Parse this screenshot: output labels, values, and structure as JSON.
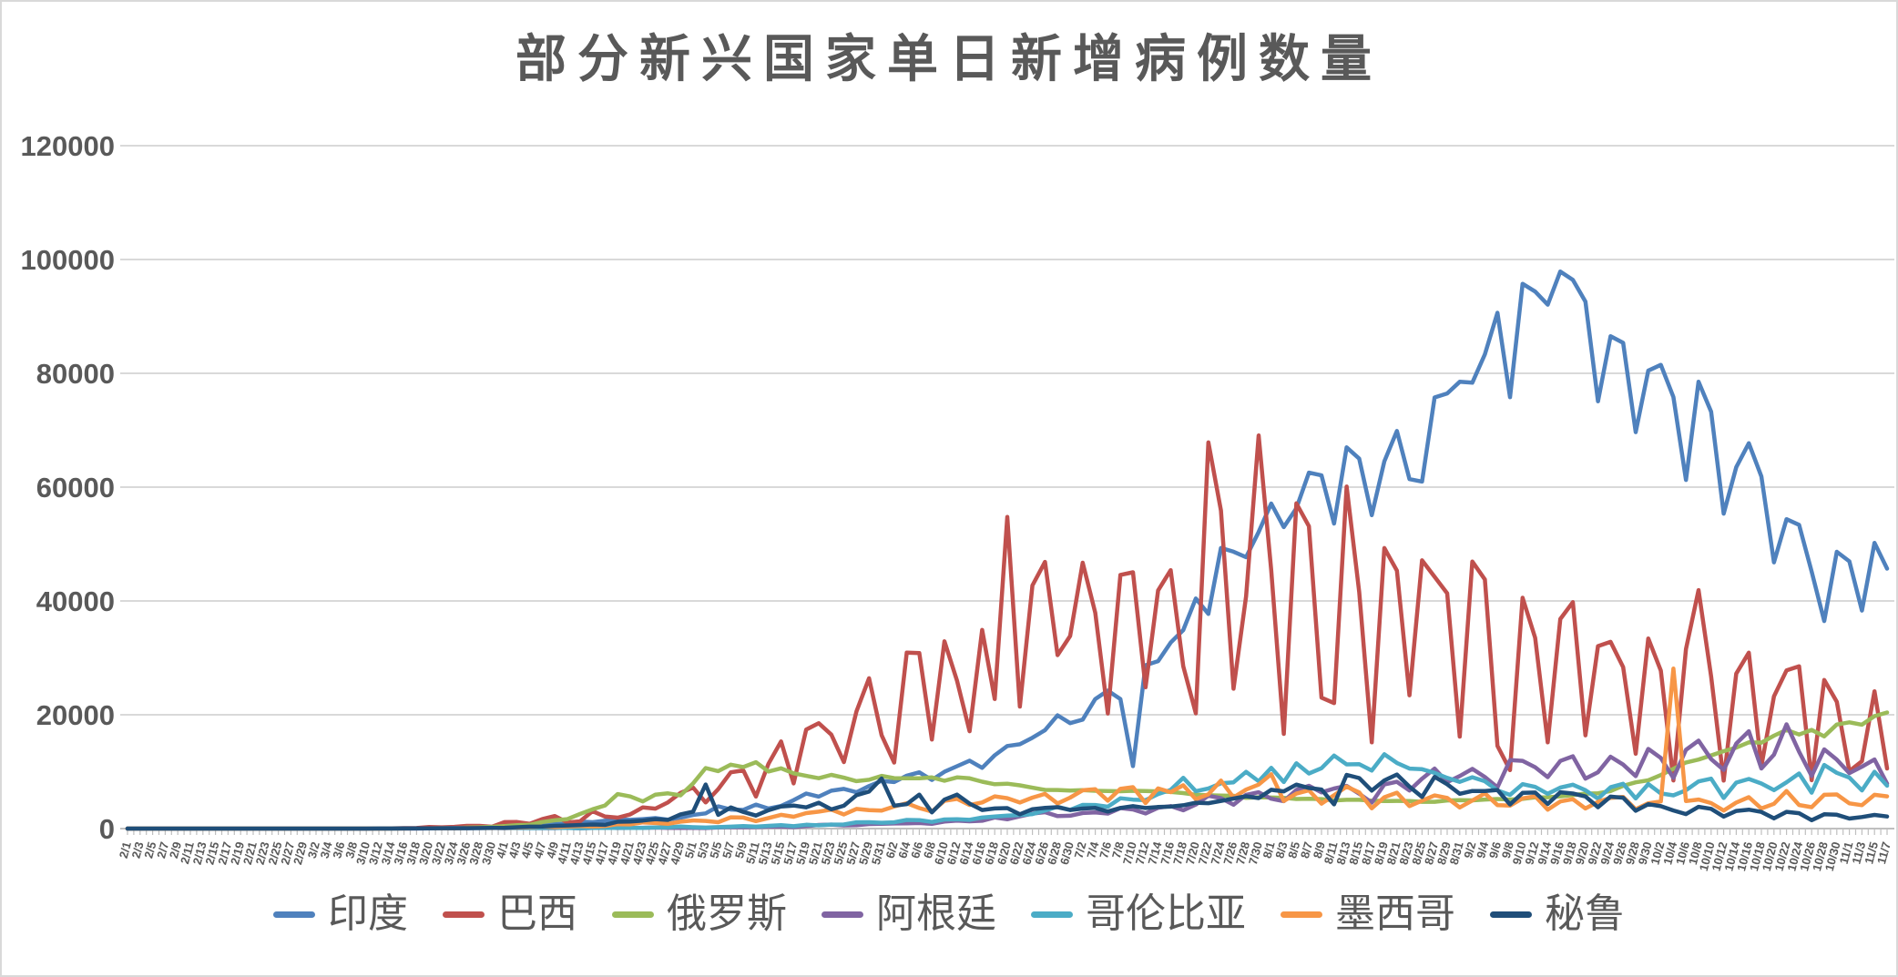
{
  "title": "部分新兴国家单日新增病例数量",
  "colors": {
    "background": "#ffffff",
    "gridline": "#d9d9d9",
    "axis_line": "#bfbfbf",
    "text": "#595959"
  },
  "chart_data": {
    "type": "line",
    "title": "部分新兴国家单日新增病例数量",
    "xlabel": "",
    "ylabel": "",
    "ylim": [
      0,
      120000
    ],
    "y_ticks": [
      0,
      20000,
      40000,
      60000,
      80000,
      100000,
      120000
    ],
    "grid": "horizontal",
    "legend_position": "bottom",
    "x_tick_labels": [
      "2/1",
      "2/3",
      "2/5",
      "2/7",
      "2/9",
      "2/11",
      "2/13",
      "2/15",
      "2/17",
      "2/19",
      "2/21",
      "2/23",
      "2/25",
      "2/27",
      "2/29",
      "3/2",
      "3/4",
      "3/6",
      "3/8",
      "3/10",
      "3/12",
      "3/14",
      "3/16",
      "3/18",
      "3/20",
      "3/22",
      "3/24",
      "3/26",
      "3/28",
      "3/30",
      "4/1",
      "4/3",
      "4/5",
      "4/7",
      "4/9",
      "4/11",
      "4/13",
      "4/15",
      "4/17",
      "4/19",
      "4/21",
      "4/23",
      "4/25",
      "4/27",
      "4/29",
      "5/1",
      "5/3",
      "5/5",
      "5/7",
      "5/9",
      "5/11",
      "5/13",
      "5/15",
      "5/17",
      "5/19",
      "5/21",
      "5/23",
      "5/25",
      "5/27",
      "5/29",
      "5/31",
      "6/2",
      "6/4",
      "6/6",
      "6/8",
      "6/10",
      "6/12",
      "6/14",
      "6/16",
      "6/18",
      "6/20",
      "6/22",
      "6/24",
      "6/26",
      "6/28",
      "6/30",
      "7/2",
      "7/4",
      "7/6",
      "7/8",
      "7/10",
      "7/12",
      "7/14",
      "7/16",
      "7/18",
      "7/20",
      "7/22",
      "7/24",
      "7/26",
      "7/28",
      "7/30",
      "8/1",
      "8/3",
      "8/5",
      "8/7",
      "8/9",
      "8/11",
      "8/13",
      "8/15",
      "8/17",
      "8/19",
      "8/21",
      "8/23",
      "8/25",
      "8/27",
      "8/29",
      "8/31",
      "9/2",
      "9/4",
      "9/6",
      "9/8",
      "9/10",
      "9/12",
      "9/14",
      "9/16",
      "9/18",
      "9/20",
      "9/22",
      "9/24",
      "9/26",
      "9/28",
      "9/30",
      "10/2",
      "10/4",
      "10/6",
      "10/8",
      "10/10",
      "10/12",
      "10/14",
      "10/16",
      "10/18",
      "10/20",
      "10/22",
      "10/24",
      "10/26",
      "10/28",
      "10/30",
      "11/1",
      "11/3",
      "11/5",
      "11/7"
    ],
    "series": [
      {
        "name": "印度",
        "color": "#4F81BD",
        "values": [
          0,
          0,
          0,
          0,
          0,
          0,
          0,
          0,
          0,
          0,
          0,
          0,
          0,
          0,
          0,
          2,
          6,
          1,
          5,
          8,
          11,
          9,
          12,
          14,
          50,
          67,
          70,
          88,
          150,
          227,
          424,
          560,
          605,
          573,
          813,
          854,
          1243,
          1118,
          1371,
          1580,
          1537,
          1667,
          1835,
          1561,
          1902,
          2396,
          2676,
          3900,
          3344,
          3277,
          4213,
          3525,
          3967,
          4987,
          6154,
          5609,
          6654,
          6977,
          6387,
          7466,
          8380,
          8171,
          9304,
          9887,
          8536,
          9985,
          10956,
          11929,
          10667,
          12881,
          14516,
          14821,
          15968,
          17296,
          19906,
          18522,
          19148,
          22771,
          24248,
          22752,
          10974,
          28701,
          29429,
          32695,
          34884,
          40425,
          37724,
          49310,
          48661,
          47704,
          52123,
          57118,
          52972,
          56282,
          62538,
          62064,
          53601,
          66999,
          65002,
          55079,
          64531,
          69876,
          61408,
          60975,
          75760,
          76472,
          78512,
          78357,
          83341,
          90632,
          75809,
          95735,
          94372,
          92071,
          97894,
          96424,
          92605,
          75083,
          86508,
          85362,
          69671,
          80472,
          81484,
          75829,
          61267,
          78524,
          73272,
          55342,
          63509,
          67708,
          61871,
          46790,
          54366,
          53370,
          45148,
          36470,
          48648,
          46963,
          38310,
          50210,
          45674
        ]
      },
      {
        "name": "巴西",
        "color": "#C0504D",
        "values": [
          0,
          0,
          0,
          0,
          0,
          0,
          0,
          0,
          0,
          0,
          0,
          0,
          0,
          0,
          0,
          0,
          1,
          9,
          6,
          9,
          25,
          46,
          83,
          93,
          283,
          224,
          310,
          482,
          487,
          323,
          1138,
          1146,
          852,
          1661,
          2210,
          1089,
          1261,
          3058,
          2105,
          1927,
          2498,
          3735,
          3503,
          4613,
          6276,
          7218,
          4588,
          6935,
          9888,
          10222,
          5632,
          11385,
          15305,
          7938,
          17408,
          18508,
          16508,
          11687,
          20599,
          26417,
          16409,
          11598,
          30925,
          30830,
          15654,
          32913,
          25982,
          17110,
          34918,
          22765,
          54771,
          21432,
          42725,
          46860,
          30476,
          33846,
          46712,
          37923,
          20229,
          44571,
          45048,
          24831,
          41857,
          45403,
          28532,
          20257,
          67860,
          55891,
          24578,
          40816,
          69074,
          45392,
          16641,
          57152,
          53139,
          23010,
          22048,
          60091,
          41576,
          15155,
          49298,
          45323,
          23421,
          47134,
          44235,
          41350,
          16158,
          46934,
          43773,
          14521,
          10273,
          40557,
          33523,
          15155,
          36820,
          39797,
          16389,
          32058,
          32817,
          28378,
          13155,
          33413,
          27750,
          8456,
          31553,
          41906,
          26749,
          8429,
          27235,
          30914,
          10982,
          23227,
          27787,
          28523,
          8501,
          26106,
          22282,
          10100,
          11843,
          24130,
          10554
        ]
      },
      {
        "name": "俄罗斯",
        "color": "#9BBB59",
        "values": [
          0,
          0,
          0,
          0,
          0,
          0,
          0,
          0,
          0,
          0,
          0,
          0,
          0,
          0,
          0,
          0,
          3,
          4,
          0,
          10,
          9,
          14,
          30,
          33,
          54,
          61,
          71,
          182,
          228,
          302,
          440,
          601,
          658,
          1154,
          1459,
          1667,
          2558,
          3388,
          4070,
          6060,
          5642,
          4774,
          5966,
          6198,
          5841,
          7933,
          10633,
          10102,
          11231,
          10817,
          11656,
          10028,
          10598,
          9709,
          9263,
          8849,
          9434,
          8946,
          8338,
          8572,
          9268,
          8863,
          8831,
          8855,
          8985,
          8404,
          8987,
          8835,
          8248,
          7790,
          7889,
          7600,
          7176,
          6800,
          6791,
          6693,
          6760,
          6632,
          6611,
          6562,
          6635,
          6615,
          6537,
          6428,
          6234,
          5940,
          5862,
          5811,
          5765,
          5395,
          5509,
          5462,
          5394,
          5204,
          5241,
          5189,
          4945,
          5057,
          5061,
          4892,
          4828,
          4870,
          4852,
          4696,
          4711,
          4941,
          4993,
          4952,
          5110,
          5195,
          5099,
          5218,
          5488,
          5509,
          5670,
          5905,
          6148,
          6215,
          6595,
          7523,
          8135,
          8481,
          9412,
          10499,
          11615,
          12126,
          12846,
          13592,
          14231,
          15150,
          15099,
          16319,
          17340,
          16521,
          17347,
          16202,
          18283,
          18665,
          18257,
          19768,
          20396
        ]
      },
      {
        "name": "阿根廷",
        "color": "#8064A2",
        "values": [
          0,
          0,
          0,
          0,
          0,
          0,
          0,
          0,
          0,
          0,
          0,
          0,
          0,
          0,
          0,
          0,
          1,
          1,
          3,
          4,
          8,
          11,
          9,
          14,
          30,
          67,
          75,
          87,
          101,
          146,
          88,
          132,
          103,
          87,
          80,
          167,
          69,
          114,
          172,
          102,
          112,
          147,
          173,
          111,
          124,
          105,
          104,
          188,
          255,
          240,
          258,
          344,
          345,
          263,
          438,
          648,
          704,
          552,
          600,
          795,
          846,
          904,
          929,
          983,
          826,
          1226,
          1391,
          1282,
          1374,
          1958,
          1634,
          2146,
          2648,
          2886,
          2189,
          2262,
          2744,
          2845,
          2632,
          3604,
          3367,
          2657,
          3645,
          3945,
          3223,
          4231,
          5782,
          5344,
          4192,
          5939,
          6377,
          5241,
          4824,
          6792,
          7513,
          6365,
          7043,
          7498,
          6134,
          4557,
          7759,
          8225,
          6693,
          8771,
          10550,
          8160,
          9230,
          10504,
          9056,
          7247,
          12027,
          11905,
          10776,
          9043,
          11893,
          12701,
          8782,
          9909,
          12625,
          11249,
          9215,
          14001,
          12414,
          8902,
          13843,
          15454,
          12207,
          10324,
          14932,
          17096,
          10561,
          12982,
          18326,
          13510,
          9253,
          13924,
          12110,
          9745,
          10880,
          12141,
          7893
        ]
      },
      {
        "name": "哥伦比亚",
        "color": "#4BACC6",
        "values": [
          0,
          0,
          0,
          0,
          0,
          0,
          0,
          0,
          0,
          0,
          0,
          0,
          0,
          0,
          0,
          0,
          0,
          1,
          0,
          3,
          5,
          16,
          12,
          28,
          43,
          46,
          56,
          89,
          94,
          108,
          103,
          123,
          79,
          93,
          118,
          112,
          66,
          127,
          128,
          105,
          127,
          133,
          208,
          216,
          352,
          245,
          184,
          257,
          342,
          454,
          334,
          482,
          595,
          420,
          676,
          581,
          704,
          715,
          1101,
          1123,
          1028,
          1110,
          1515,
          1486,
          1163,
          1604,
          1646,
          1530,
          1936,
          2126,
          2271,
          2389,
          2548,
          3171,
          3843,
          3274,
          4163,
          4149,
          3832,
          5335,
          5083,
          4989,
          6061,
          6803,
          8934,
          6578,
          7033,
          7945,
          8125,
          9965,
          8320,
          10673,
          8181,
          11470,
          9674,
          10611,
          12830,
          11286,
          11306,
          10199,
          13056,
          11541,
          10549,
          10425,
          9789,
          8919,
          8201,
          9023,
          8317,
          6698,
          5920,
          7813,
          7333,
          6112,
          7193,
          7717,
          6758,
          5251,
          7257,
          7872,
          5297,
          7822,
          6179,
          5839,
          6731,
          8292,
          8769,
          5372,
          8088,
          8717,
          7928,
          6755,
          8125,
          9674,
          6310,
          11187,
          9788,
          8954,
          6698,
          9989,
          7531
        ]
      },
      {
        "name": "墨西哥",
        "color": "#F79646",
        "values": [
          0,
          0,
          0,
          0,
          0,
          0,
          0,
          0,
          0,
          0,
          0,
          0,
          0,
          0,
          0,
          0,
          1,
          1,
          0,
          2,
          4,
          9,
          11,
          25,
          39,
          65,
          38,
          110,
          131,
          101,
          163,
          178,
          253,
          346,
          260,
          375,
          442,
          385,
          450,
          764,
          729,
          1089,
          970,
          835,
          1223,
          1425,
          1349,
          1120,
          1982,
          1938,
          1305,
          1862,
          2409,
          2075,
          2713,
          2973,
          3329,
          2485,
          3463,
          3227,
          3152,
          3891,
          4442,
          3593,
          2999,
          4883,
          5222,
          4147,
          4599,
          5662,
          5343,
          4577,
          5437,
          6104,
          4410,
          5432,
          6741,
          6914,
          4902,
          6995,
          7280,
          4482,
          7051,
          6406,
          7615,
          5172,
          6019,
          8438,
          5480,
          6848,
          7730,
          9556,
          4853,
          6139,
          6717,
          4376,
          5858,
          7371,
          6345,
          3571,
          5506,
          6302,
          3948,
          4916,
          5824,
          5399,
          3719,
          4921,
          6196,
          4129,
          4040,
          5309,
          5674,
          3335,
          4771,
          5167,
          3542,
          4683,
          5401,
          5573,
          3400,
          4446,
          4775,
          28115,
          4828,
          5099,
          4477,
          3175,
          4580,
          5514,
          3542,
          4360,
          6612,
          4151,
          3763,
          5942,
          6000,
          4430,
          4119,
          5931,
          5658
        ]
      },
      {
        "name": "秘鲁",
        "color": "#1F4E79",
        "values": [
          0,
          0,
          0,
          0,
          0,
          0,
          0,
          0,
          0,
          0,
          0,
          0,
          0,
          0,
          0,
          0,
          0,
          1,
          5,
          4,
          9,
          15,
          28,
          31,
          29,
          68,
          63,
          82,
          93,
          115,
          143,
          245,
          336,
          362,
          488,
          540,
          621,
          716,
          664,
          1208,
          1241,
          1413,
          1665,
          1526,
          2491,
          2970,
          7737,
          2413,
          3709,
          2929,
          2292,
          3237,
          3891,
          4046,
          3732,
          4537,
          3383,
          4020,
          5874,
          6506,
          8805,
          4030,
          4284,
          5965,
          2848,
          5087,
          5961,
          4383,
          3256,
          3537,
          3593,
          2511,
          3413,
          3625,
          3762,
          3264,
          3527,
          3638,
          2985,
          3633,
          3951,
          3616,
          3797,
          3857,
          4090,
          4546,
          4463,
          4865,
          5288,
          5678,
          5355,
          6809,
          6547,
          7734,
          7137,
          6859,
          4250,
          9441,
          8875,
          6671,
          8461,
          9507,
          7365,
          5547,
          9090,
          7786,
          6114,
          6614,
          6586,
          6787,
          4241,
          6275,
          6330,
          4323,
          6380,
          6164,
          5648,
          3753,
          5616,
          5420,
          3130,
          4284,
          3940,
          3178,
          2549,
          3821,
          3477,
          2106,
          3109,
          3335,
          2935,
          1790,
          2951,
          2697,
          1480,
          2508,
          2431,
          1765,
          2029,
          2399,
          2135
        ]
      }
    ]
  }
}
